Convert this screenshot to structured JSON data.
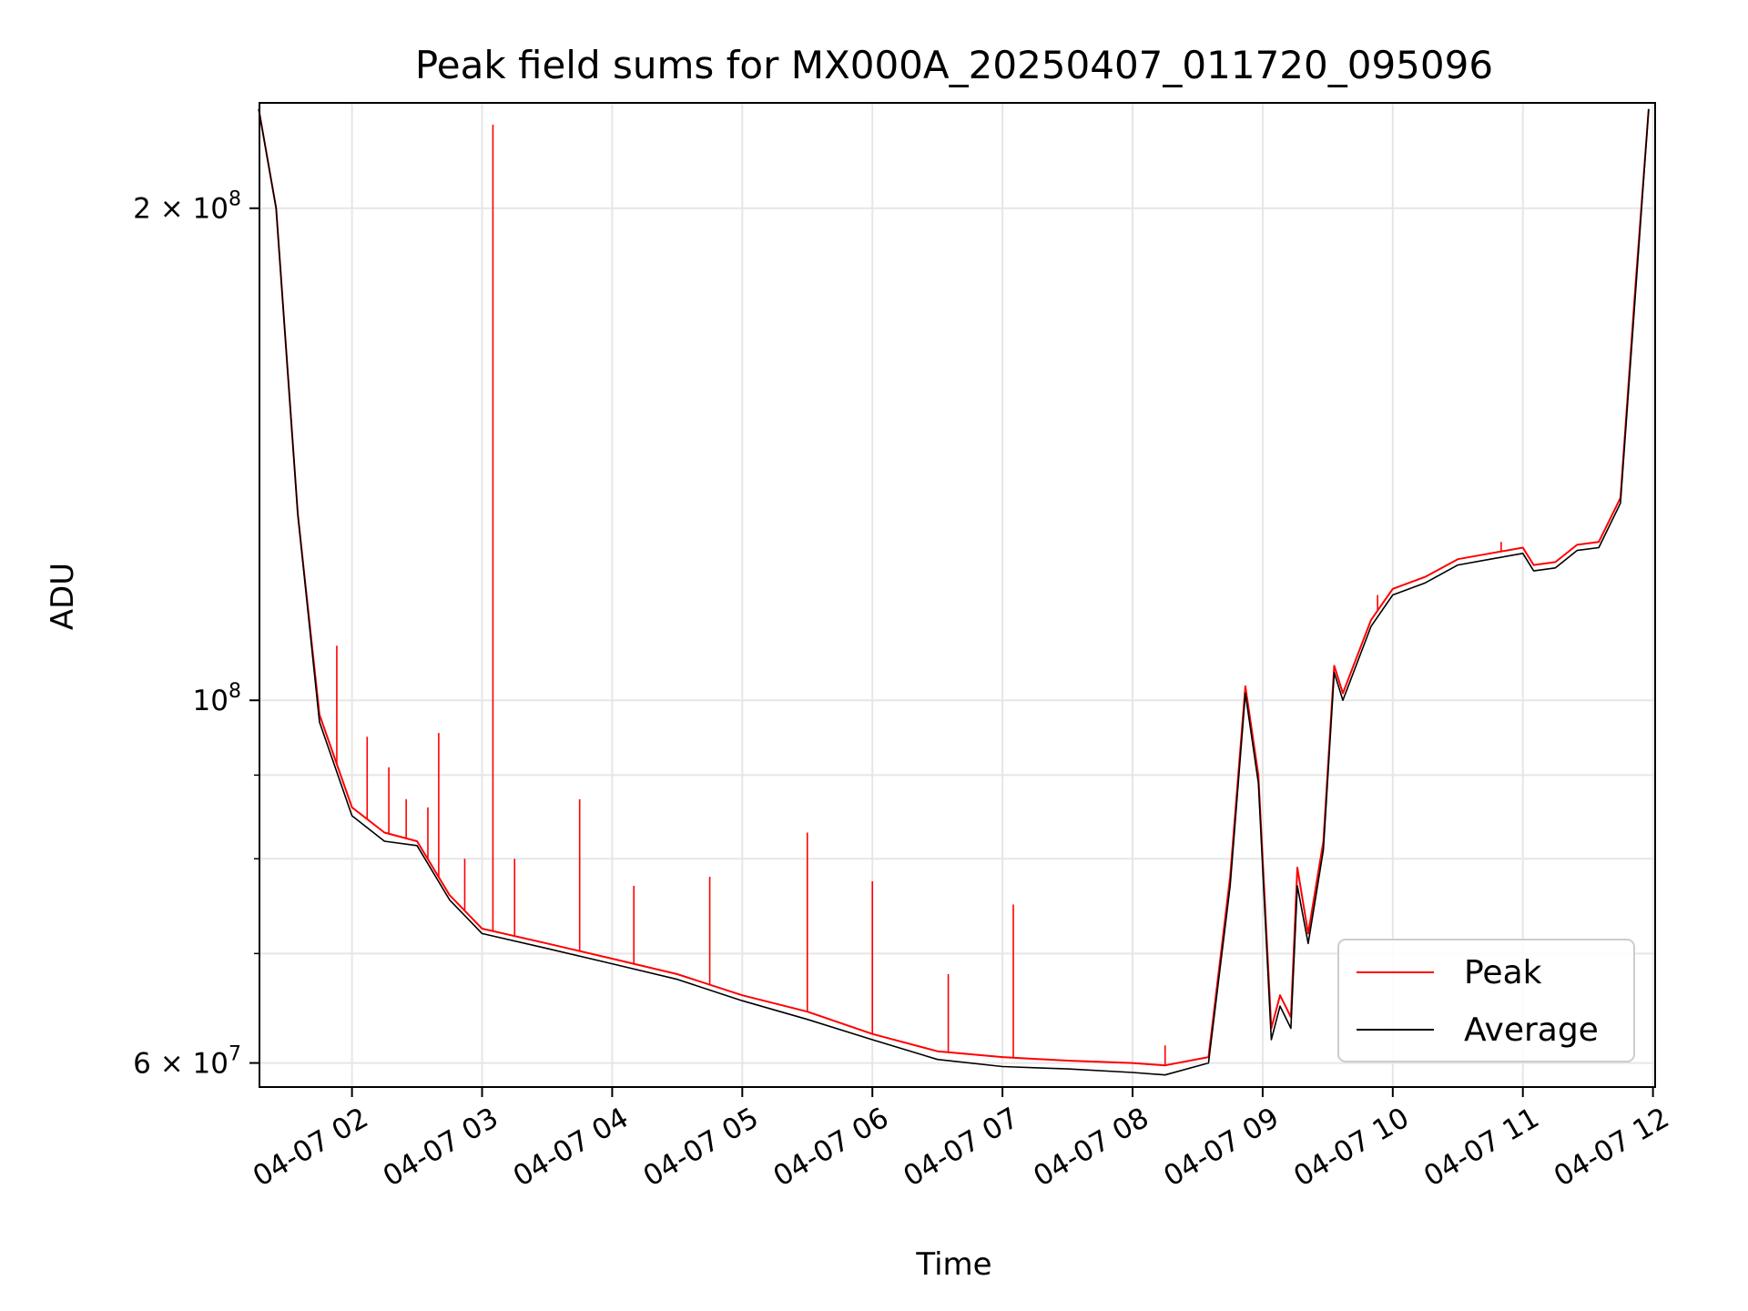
{
  "chart_data": {
    "type": "line",
    "title": "Peak field sums for MX000A_20250407_011720_095096",
    "xlabel": "Time",
    "ylabel": "ADU",
    "y_scale": "log",
    "ylim": [
      58000000,
      232000000
    ],
    "xlim": [
      "2025-04-07T01:17:20",
      "2025-04-07T12:01:00"
    ],
    "grid": true,
    "legend_position": "bottom-right",
    "x_ticks": [
      {
        "t": "2025-04-07T02:00",
        "label": "04-07 02"
      },
      {
        "t": "2025-04-07T03:00",
        "label": "04-07 03"
      },
      {
        "t": "2025-04-07T04:00",
        "label": "04-07 04"
      },
      {
        "t": "2025-04-07T05:00",
        "label": "04-07 05"
      },
      {
        "t": "2025-04-07T06:00",
        "label": "04-07 06"
      },
      {
        "t": "2025-04-07T07:00",
        "label": "04-07 07"
      },
      {
        "t": "2025-04-07T08:00",
        "label": "04-07 08"
      },
      {
        "t": "2025-04-07T09:00",
        "label": "04-07 09"
      },
      {
        "t": "2025-04-07T10:00",
        "label": "04-07 10"
      },
      {
        "t": "2025-04-07T11:00",
        "label": "04-07 11"
      },
      {
        "t": "2025-04-07T12:00",
        "label": "04-07 12"
      }
    ],
    "y_ticks_major": [
      {
        "v": 60000000,
        "base": "6 × 10",
        "exp": "7"
      },
      {
        "v": 100000000,
        "base": "10",
        "exp": "8"
      },
      {
        "v": 200000000,
        "base": "2 × 10",
        "exp": "8"
      }
    ],
    "y_ticks_minor": [
      70000000,
      80000000,
      90000000
    ],
    "series": [
      {
        "name": "Peak",
        "color": "#ff0000",
        "points": [
          [
            "2025-04-07T01:17",
            230000000
          ],
          [
            "2025-04-07T01:25",
            200000000
          ],
          [
            "2025-04-07T01:35",
            130000000
          ],
          [
            "2025-04-07T01:45",
            98000000
          ],
          [
            "2025-04-07T02:00",
            86000000
          ],
          [
            "2025-04-07T02:15",
            83000000
          ],
          [
            "2025-04-07T02:30",
            82000000
          ],
          [
            "2025-04-07T02:45",
            76000000
          ],
          [
            "2025-04-07T03:00",
            72500000
          ],
          [
            "2025-04-07T03:30",
            71000000
          ],
          [
            "2025-04-07T04:00",
            69500000
          ],
          [
            "2025-04-07T04:30",
            68000000
          ],
          [
            "2025-04-07T05:00",
            66000000
          ],
          [
            "2025-04-07T05:30",
            64500000
          ],
          [
            "2025-04-07T06:00",
            62500000
          ],
          [
            "2025-04-07T06:30",
            61000000
          ],
          [
            "2025-04-07T07:00",
            60500000
          ],
          [
            "2025-04-07T07:30",
            60200000
          ],
          [
            "2025-04-07T08:00",
            60000000
          ],
          [
            "2025-04-07T08:15",
            59800000
          ],
          [
            "2025-04-07T08:35",
            60500000
          ],
          [
            "2025-04-07T08:45",
            78000000
          ],
          [
            "2025-04-07T08:52",
            102000000
          ],
          [
            "2025-04-07T08:58",
            90000000
          ],
          [
            "2025-04-07T09:04",
            63000000
          ],
          [
            "2025-04-07T09:08",
            66000000
          ],
          [
            "2025-04-07T09:13",
            64000000
          ],
          [
            "2025-04-07T09:16",
            79000000
          ],
          [
            "2025-04-07T09:21",
            72000000
          ],
          [
            "2025-04-07T09:28",
            82000000
          ],
          [
            "2025-04-07T09:33",
            105000000
          ],
          [
            "2025-04-07T09:37",
            101000000
          ],
          [
            "2025-04-07T09:50",
            112000000
          ],
          [
            "2025-04-07T10:00",
            117000000
          ],
          [
            "2025-04-07T10:15",
            119000000
          ],
          [
            "2025-04-07T10:30",
            122000000
          ],
          [
            "2025-04-07T10:45",
            123000000
          ],
          [
            "2025-04-07T11:00",
            124000000
          ],
          [
            "2025-04-07T11:05",
            121000000
          ],
          [
            "2025-04-07T11:15",
            121500000
          ],
          [
            "2025-04-07T11:25",
            124500000
          ],
          [
            "2025-04-07T11:35",
            125000000
          ],
          [
            "2025-04-07T11:45",
            133000000
          ],
          [
            "2025-04-07T11:52",
            180000000
          ],
          [
            "2025-04-07T11:58",
            230000000
          ]
        ],
        "spikes": [
          [
            "2025-04-07T01:53",
            108000000
          ],
          [
            "2025-04-07T02:07",
            95000000
          ],
          [
            "2025-04-07T02:17",
            91000000
          ],
          [
            "2025-04-07T02:25",
            87000000
          ],
          [
            "2025-04-07T02:35",
            86000000
          ],
          [
            "2025-04-07T02:40",
            95500000
          ],
          [
            "2025-04-07T02:52",
            80000000
          ],
          [
            "2025-04-07T03:05",
            225000000
          ],
          [
            "2025-04-07T03:15",
            80000000
          ],
          [
            "2025-04-07T03:45",
            87000000
          ],
          [
            "2025-04-07T04:10",
            77000000
          ],
          [
            "2025-04-07T04:45",
            78000000
          ],
          [
            "2025-04-07T05:30",
            83000000
          ],
          [
            "2025-04-07T06:00",
            77500000
          ],
          [
            "2025-04-07T06:35",
            68000000
          ],
          [
            "2025-04-07T07:05",
            75000000
          ],
          [
            "2025-04-07T08:15",
            61500000
          ],
          [
            "2025-04-07T09:53",
            116000000
          ],
          [
            "2025-04-07T10:50",
            125000000
          ]
        ]
      },
      {
        "name": "Average",
        "color": "#000000",
        "points": [
          [
            "2025-04-07T01:17",
            230000000
          ],
          [
            "2025-04-07T01:25",
            200000000
          ],
          [
            "2025-04-07T01:35",
            130000000
          ],
          [
            "2025-04-07T01:45",
            97000000
          ],
          [
            "2025-04-07T02:00",
            85000000
          ],
          [
            "2025-04-07T02:15",
            82000000
          ],
          [
            "2025-04-07T02:30",
            81500000
          ],
          [
            "2025-04-07T02:45",
            75500000
          ],
          [
            "2025-04-07T03:00",
            72000000
          ],
          [
            "2025-04-07T03:30",
            70500000
          ],
          [
            "2025-04-07T04:00",
            69000000
          ],
          [
            "2025-04-07T04:30",
            67500000
          ],
          [
            "2025-04-07T05:00",
            65500000
          ],
          [
            "2025-04-07T05:30",
            63800000
          ],
          [
            "2025-04-07T06:00",
            62000000
          ],
          [
            "2025-04-07T06:30",
            60300000
          ],
          [
            "2025-04-07T07:00",
            59700000
          ],
          [
            "2025-04-07T07:30",
            59500000
          ],
          [
            "2025-04-07T08:00",
            59200000
          ],
          [
            "2025-04-07T08:15",
            59000000
          ],
          [
            "2025-04-07T08:35",
            60000000
          ],
          [
            "2025-04-07T08:45",
            77000000
          ],
          [
            "2025-04-07T08:52",
            101000000
          ],
          [
            "2025-04-07T08:58",
            89000000
          ],
          [
            "2025-04-07T09:04",
            62000000
          ],
          [
            "2025-04-07T09:08",
            65000000
          ],
          [
            "2025-04-07T09:13",
            63000000
          ],
          [
            "2025-04-07T09:16",
            77000000
          ],
          [
            "2025-04-07T09:21",
            71000000
          ],
          [
            "2025-04-07T09:28",
            81000000
          ],
          [
            "2025-04-07T09:33",
            104000000
          ],
          [
            "2025-04-07T09:37",
            100000000
          ],
          [
            "2025-04-07T09:50",
            111000000
          ],
          [
            "2025-04-07T10:00",
            116000000
          ],
          [
            "2025-04-07T10:15",
            118000000
          ],
          [
            "2025-04-07T10:30",
            121000000
          ],
          [
            "2025-04-07T10:45",
            122000000
          ],
          [
            "2025-04-07T11:00",
            123000000
          ],
          [
            "2025-04-07T11:05",
            120000000
          ],
          [
            "2025-04-07T11:15",
            120500000
          ],
          [
            "2025-04-07T11:25",
            123500000
          ],
          [
            "2025-04-07T11:35",
            124000000
          ],
          [
            "2025-04-07T11:45",
            132000000
          ],
          [
            "2025-04-07T11:52",
            178000000
          ],
          [
            "2025-04-07T11:58",
            230000000
          ]
        ]
      }
    ]
  }
}
